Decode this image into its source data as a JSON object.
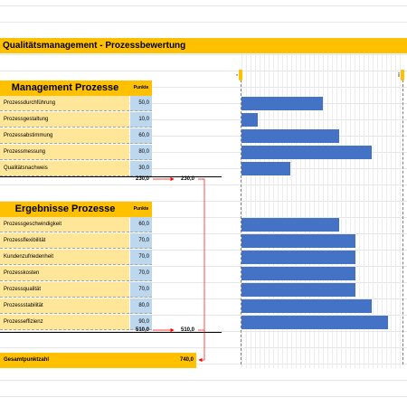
{
  "title": "Qualitätsmanagement - Prozessbewertung",
  "management": {
    "title": "Management Prozesse",
    "punkte_label": "Punkte",
    "items": [
      {
        "label": "Prozessdurchführung",
        "value": "50,0"
      },
      {
        "label": "Prozessgestaltung",
        "value": "10,0"
      },
      {
        "label": "Prozessabstimmung",
        "value": "60,0"
      },
      {
        "label": "Prozessmessung",
        "value": "80,0"
      },
      {
        "label": "Qualitätsnachweis",
        "value": "30,0"
      }
    ],
    "sum": "230,0",
    "sum_carry": "230,0"
  },
  "ergebnisse": {
    "title": "Ergebnisse Prozesse",
    "punkte_label": "Punkte",
    "items": [
      {
        "label": "Prozessgeschwindigkeit",
        "value": "60,0"
      },
      {
        "label": "Prozessflexibilität",
        "value": "70,0"
      },
      {
        "label": "Kundenzufriedenheit",
        "value": "70,0"
      },
      {
        "label": "Prozesskosten",
        "value": "70,0"
      },
      {
        "label": "Prozessqualität",
        "value": "70,0"
      },
      {
        "label": "Prozessstabilität",
        "value": "80,0"
      },
      {
        "label": "Prozesseffizienz",
        "value": "90,0"
      }
    ],
    "sum": "510,0",
    "sum_carry": "510,0"
  },
  "total": {
    "label": "Gesamtpunktzahl",
    "value": "740,0"
  },
  "scale": {
    "min_label": "0",
    "max_label": "100",
    "min": 0,
    "max": 100
  },
  "colors": {
    "header": "#ffc000",
    "label_bg": "#ffe699",
    "value_bg": "#bdd7ee",
    "bar": "#4472c4",
    "arrow": "#ff0000"
  }
}
